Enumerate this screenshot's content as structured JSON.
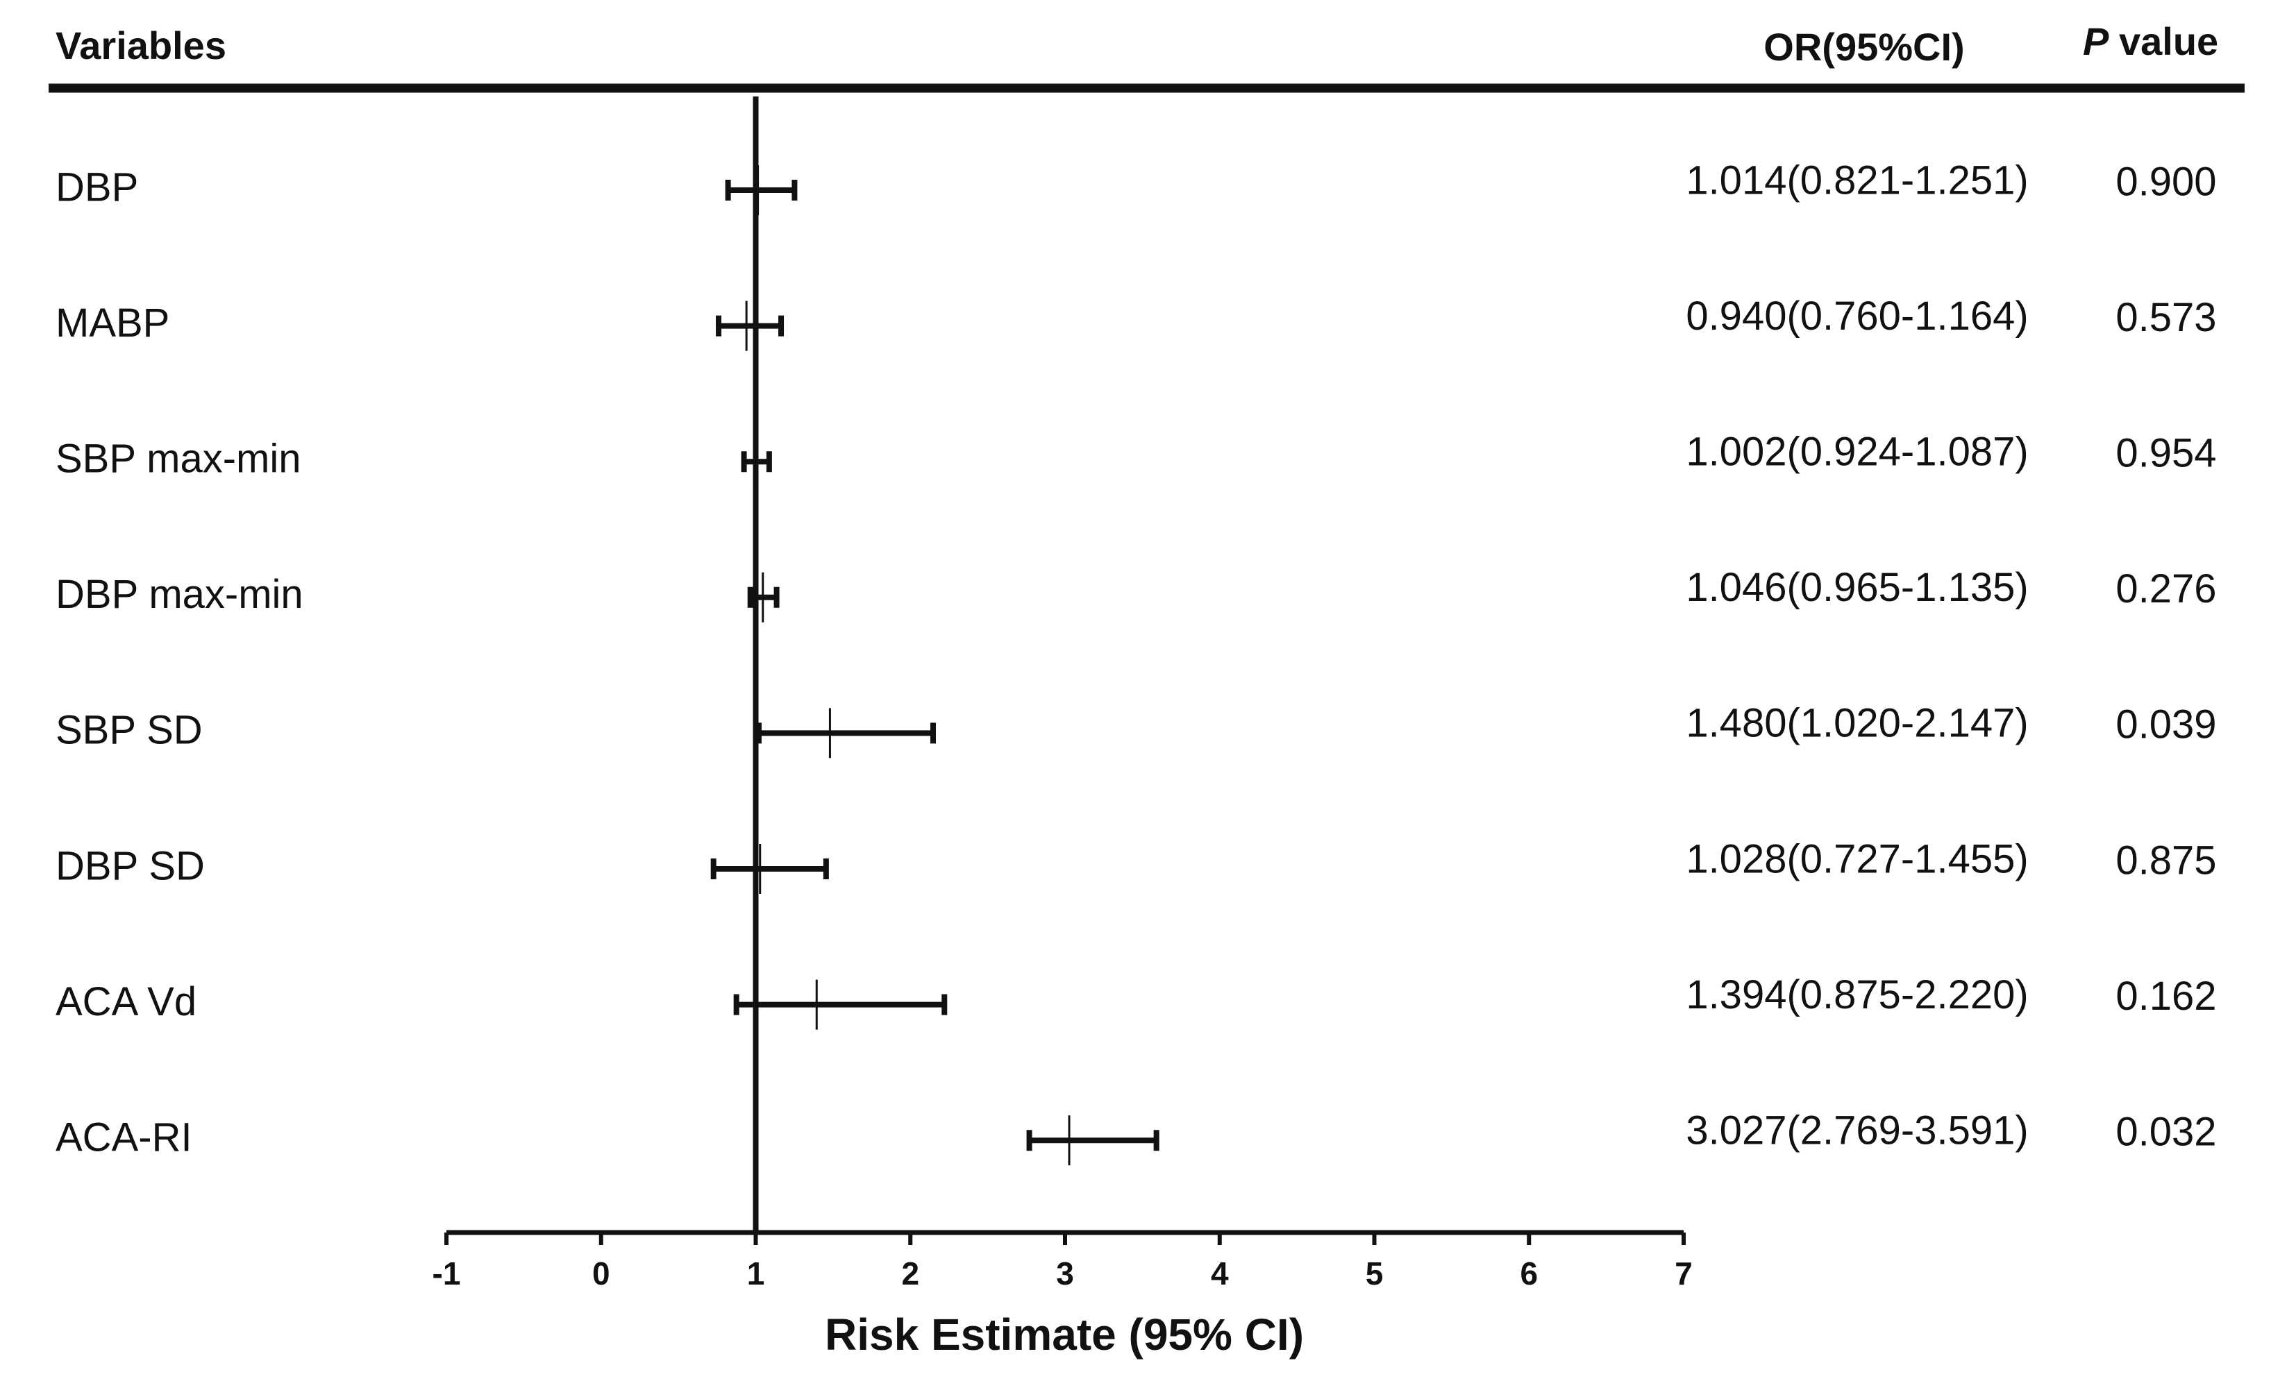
{
  "chart_data": {
    "type": "forest",
    "header_variables": "Variables",
    "header_or": "OR(95%CI)",
    "header_p_italic": "P",
    "header_p_rest": "value",
    "categories": [
      "DBP",
      "MABP",
      "SBP max-min",
      "DBP max-min",
      "SBP SD",
      "DBP SD",
      "ACA Vd",
      "ACA-RI"
    ],
    "values": [
      1.014,
      0.94,
      1.002,
      1.046,
      1.48,
      1.028,
      1.394,
      3.027
    ],
    "lower": [
      0.821,
      0.76,
      0.924,
      0.965,
      1.02,
      0.727,
      0.875,
      2.769
    ],
    "upper": [
      1.251,
      1.164,
      1.087,
      1.135,
      2.147,
      1.455,
      2.22,
      3.591
    ],
    "ci_labels": [
      "1.014(0.821-1.251)",
      "0.940(0.760-1.164)",
      "1.002(0.924-1.087)",
      "1.046(0.965-1.135)",
      "1.480(1.020-2.147)",
      "1.028(0.727-1.455)",
      "1.394(0.875-2.220)",
      "3.027(2.769-3.591)"
    ],
    "p_values": [
      "0.900",
      "0.573",
      "0.954",
      "0.276",
      "0.039",
      "0.875",
      "0.162",
      "0.032"
    ],
    "xlim": [
      -1,
      7
    ],
    "xticks": [
      -1,
      0,
      1,
      2,
      3,
      4,
      5,
      6,
      7
    ],
    "reference_line": 1,
    "xlabel": "Risk Estimate (95% CI)",
    "color": "#111111"
  }
}
